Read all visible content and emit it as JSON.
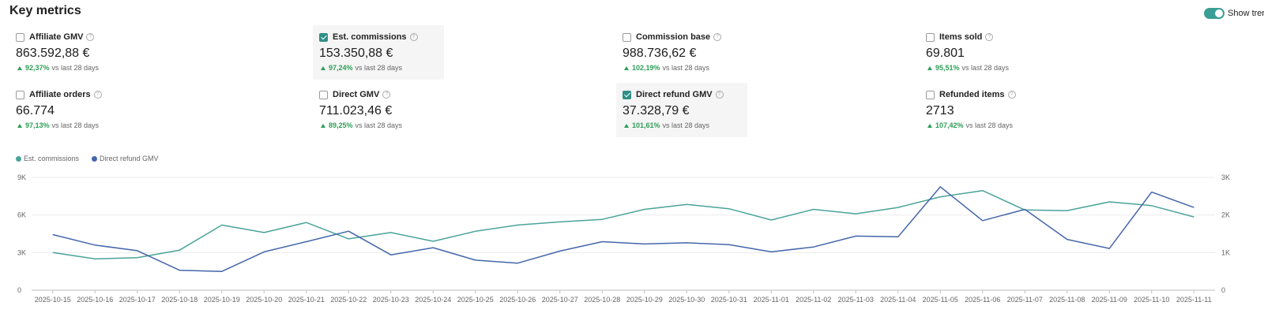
{
  "header": {
    "title": "Key metrics",
    "toggle_label": "Show trer"
  },
  "metrics": [
    {
      "label": "Affiliate GMV",
      "value": "863.592,88 €",
      "change": "92,37%",
      "suffix": "vs last 28 days",
      "checked": false
    },
    {
      "label": "Est. commissions",
      "value": "153.350,88 €",
      "change": "97,24%",
      "suffix": "vs last 28 days",
      "checked": true
    },
    {
      "label": "Commission base",
      "value": "988.736,62 €",
      "change": "102,19%",
      "suffix": "vs last 28 days",
      "checked": false
    },
    {
      "label": "Items sold",
      "value": "69.801",
      "change": "95,51%",
      "suffix": "vs last 28 days",
      "checked": false
    },
    {
      "label": "Affiliate orders",
      "value": "66.774",
      "change": "97,13%",
      "suffix": "vs last 28 days",
      "checked": false
    },
    {
      "label": "Direct GMV",
      "value": "711.023,46 €",
      "change": "89,25%",
      "suffix": "vs last 28 days",
      "checked": false
    },
    {
      "label": "Direct refund GMV",
      "value": "37.328,79 €",
      "change": "101,61%",
      "suffix": "vs last 28 days",
      "checked": true
    },
    {
      "label": "Refunded items",
      "value": "2713",
      "change": "107,42%",
      "suffix": "vs last 28 days",
      "checked": false
    }
  ],
  "colors": {
    "accent": "#3a9e96",
    "series1": "#4aa39a",
    "series2": "#4466aa",
    "positive": "#2e9e55"
  },
  "chart_data": {
    "type": "line",
    "x": [
      "2025-10-15",
      "2025-10-16",
      "2025-10-17",
      "2025-10-18",
      "2025-10-19",
      "2025-10-20",
      "2025-10-21",
      "2025-10-22",
      "2025-10-23",
      "2025-10-24",
      "2025-10-25",
      "2025-10-26",
      "2025-10-27",
      "2025-10-28",
      "2025-10-29",
      "2025-10-30",
      "2025-10-31",
      "2025-11-01",
      "2025-11-02",
      "2025-11-03",
      "2025-11-04",
      "2025-11-05",
      "2025-11-06",
      "2025-11-07",
      "2025-11-08",
      "2025-11-09",
      "2025-11-10",
      "2025-11-11"
    ],
    "series": [
      {
        "name": "Est. commissions",
        "axis": "left",
        "values": [
          3000,
          2500,
          2600,
          3200,
          5200,
          4600,
          5400,
          4100,
          4600,
          3900,
          4700,
          5200,
          5450,
          5650,
          6450,
          6850,
          6500,
          5600,
          6450,
          6100,
          6600,
          7450,
          7950,
          6400,
          6350,
          7050,
          6750,
          5850
        ]
      },
      {
        "name": "Direct refund GMV",
        "axis": "right",
        "values": [
          1480,
          1200,
          1050,
          530,
          500,
          1020,
          1290,
          1570,
          940,
          1130,
          800,
          720,
          1040,
          1290,
          1230,
          1260,
          1210,
          1020,
          1150,
          1440,
          1420,
          2750,
          1850,
          2150,
          1350,
          1110,
          2610,
          2200
        ]
      }
    ],
    "left_axis": {
      "ticks": [
        "0",
        "3K",
        "6K",
        "9K"
      ],
      "ylim": [
        0,
        9000
      ]
    },
    "right_axis": {
      "ticks": [
        "0",
        "1K",
        "2K",
        "3K"
      ],
      "ylim": [
        0,
        3000
      ]
    },
    "legend": "top-left",
    "grid": true
  }
}
